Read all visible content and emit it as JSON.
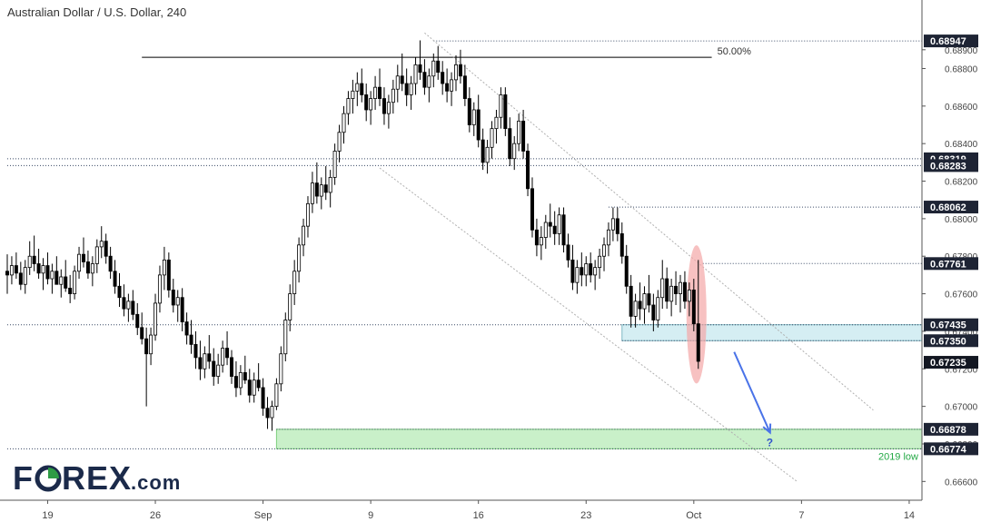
{
  "chart_data": {
    "type": "candlestick",
    "title": "Australian Dollar / U.S. Dollar, 240",
    "y_ticks": [
      "0.68900",
      "0.68800",
      "0.68600",
      "0.68400",
      "0.68200",
      "0.68000",
      "0.67800",
      "0.67600",
      "0.67400",
      "0.67200",
      "0.67000",
      "0.66800",
      "0.66600"
    ],
    "x_ticks": [
      "19",
      "26",
      "Sep",
      "9",
      "16",
      "23",
      "Oct",
      "7",
      "14"
    ],
    "x_tick_index": [
      9,
      33,
      57,
      81,
      105,
      129,
      153,
      177,
      201
    ],
    "ylim": [
      0.665,
      0.6902
    ],
    "grid": false,
    "price_lines": [
      {
        "label": "0.68947",
        "value": 0.68947,
        "style": "dotted"
      },
      {
        "label": "0.68319",
        "value": 0.68319,
        "style": "dotted"
      },
      {
        "label": "0.68283",
        "value": 0.68283,
        "style": "dotted"
      },
      {
        "label": "0.68062",
        "value": 0.68062,
        "style": "dotted"
      },
      {
        "label": "0.67761",
        "value": 0.67761,
        "style": "dotted"
      },
      {
        "label": "0.67435",
        "value": 0.67435,
        "style": "dotted"
      },
      {
        "label": "0.67350",
        "value": 0.6735,
        "style": "dotted"
      },
      {
        "label": "0.67235",
        "value": 0.67235,
        "style": "current"
      },
      {
        "label": "0.66878",
        "value": 0.66878,
        "style": "dotted"
      },
      {
        "label": "0.66774",
        "value": 0.66774,
        "style": "dotted"
      }
    ],
    "fib_line": {
      "label": "50.00%",
      "value": 0.6886,
      "start_index": 30,
      "end_index": 157
    },
    "zones": [
      {
        "name": "resistance-zone",
        "from": 0.6735,
        "to": 0.67435,
        "start_index": 137,
        "color": "#d5eef3"
      },
      {
        "name": "support-zone",
        "from": 0.66774,
        "to": 0.66878,
        "start_index": 60,
        "color": "#c9f0c9",
        "label": "2019 low"
      }
    ],
    "channel": [
      {
        "x1": 93,
        "y1": 0.6899,
        "x2": 193,
        "y2": 0.6698
      },
      {
        "x1": 83,
        "y1": 0.6827,
        "x2": 176,
        "y2": 0.666
      }
    ],
    "arrow": {
      "x1": 162,
      "y1": 0.6729,
      "x2": 170,
      "y2": 0.6686,
      "label": "?"
    },
    "highlight": {
      "index": 154,
      "low": 0.6717,
      "high": 0.6781
    },
    "colors": {
      "candle": "#000000",
      "current_badge": "#131722",
      "label_badge": "#1e2434",
      "arrow": "#4a73e8",
      "highlight": "#f4a6a6",
      "support_text": "#22a844",
      "fib": "#000000"
    },
    "candles": [
      [
        0.6772,
        0.6781,
        0.676,
        0.677
      ],
      [
        0.677,
        0.678,
        0.6765,
        0.6775
      ],
      [
        0.6775,
        0.6782,
        0.6768,
        0.6771
      ],
      [
        0.6771,
        0.6777,
        0.6762,
        0.6765
      ],
      [
        0.6765,
        0.6778,
        0.676,
        0.6774
      ],
      [
        0.6774,
        0.6788,
        0.677,
        0.678
      ],
      [
        0.678,
        0.6791,
        0.6772,
        0.6776
      ],
      [
        0.6776,
        0.6784,
        0.6768,
        0.6771
      ],
      [
        0.6771,
        0.6779,
        0.6762,
        0.6775
      ],
      [
        0.6775,
        0.6782,
        0.6765,
        0.6768
      ],
      [
        0.6768,
        0.6776,
        0.676,
        0.6772
      ],
      [
        0.6772,
        0.678,
        0.6766,
        0.6765
      ],
      [
        0.6765,
        0.6773,
        0.6758,
        0.6769
      ],
      [
        0.6769,
        0.6778,
        0.6761,
        0.6763
      ],
      [
        0.6763,
        0.677,
        0.6755,
        0.676
      ],
      [
        0.676,
        0.6775,
        0.6757,
        0.6772
      ],
      [
        0.6772,
        0.6785,
        0.6768,
        0.6781
      ],
      [
        0.6781,
        0.679,
        0.6774,
        0.6777
      ],
      [
        0.6777,
        0.6783,
        0.6768,
        0.6771
      ],
      [
        0.6771,
        0.678,
        0.6764,
        0.6776
      ],
      [
        0.6776,
        0.6789,
        0.6771,
        0.6785
      ],
      [
        0.6785,
        0.6796,
        0.6779,
        0.6788
      ],
      [
        0.6788,
        0.6792,
        0.6776,
        0.678
      ],
      [
        0.678,
        0.6785,
        0.6768,
        0.6772
      ],
      [
        0.6772,
        0.6778,
        0.676,
        0.6764
      ],
      [
        0.6764,
        0.6771,
        0.6753,
        0.6758
      ],
      [
        0.6758,
        0.6765,
        0.6748,
        0.6752
      ],
      [
        0.6752,
        0.676,
        0.6745,
        0.6756
      ],
      [
        0.6756,
        0.6762,
        0.6746,
        0.6749
      ],
      [
        0.6749,
        0.6755,
        0.6738,
        0.6742
      ],
      [
        0.6742,
        0.675,
        0.6733,
        0.6736
      ],
      [
        0.6736,
        0.6742,
        0.67,
        0.6728
      ],
      [
        0.6728,
        0.6742,
        0.6722,
        0.6738
      ],
      [
        0.6738,
        0.676,
        0.6735,
        0.6755
      ],
      [
        0.6755,
        0.6775,
        0.675,
        0.677
      ],
      [
        0.677,
        0.6785,
        0.6762,
        0.6778
      ],
      [
        0.6778,
        0.6782,
        0.6758,
        0.6762
      ],
      [
        0.6762,
        0.6768,
        0.675,
        0.6754
      ],
      [
        0.6754,
        0.6762,
        0.6745,
        0.6758
      ],
      [
        0.6758,
        0.6763,
        0.674,
        0.6745
      ],
      [
        0.6745,
        0.675,
        0.6733,
        0.6738
      ],
      [
        0.6738,
        0.6746,
        0.6728,
        0.6733
      ],
      [
        0.6733,
        0.674,
        0.672,
        0.6726
      ],
      [
        0.6726,
        0.6735,
        0.6714,
        0.672
      ],
      [
        0.672,
        0.6732,
        0.6715,
        0.6728
      ],
      [
        0.6728,
        0.6738,
        0.672,
        0.6724
      ],
      [
        0.6724,
        0.6731,
        0.6711,
        0.6716
      ],
      [
        0.6716,
        0.6728,
        0.6712,
        0.6722
      ],
      [
        0.6722,
        0.6735,
        0.6718,
        0.6731
      ],
      [
        0.6731,
        0.674,
        0.6722,
        0.6726
      ],
      [
        0.6726,
        0.673,
        0.6712,
        0.6716
      ],
      [
        0.6716,
        0.6724,
        0.6705,
        0.671
      ],
      [
        0.671,
        0.6722,
        0.6706,
        0.6718
      ],
      [
        0.6718,
        0.6727,
        0.6712,
        0.6714
      ],
      [
        0.6714,
        0.672,
        0.6702,
        0.6706
      ],
      [
        0.6706,
        0.6718,
        0.6702,
        0.6714
      ],
      [
        0.6714,
        0.6723,
        0.6708,
        0.671
      ],
      [
        0.671,
        0.6715,
        0.6695,
        0.6699
      ],
      [
        0.6699,
        0.6705,
        0.6688,
        0.6694
      ],
      [
        0.6694,
        0.6703,
        0.6687,
        0.67
      ],
      [
        0.67,
        0.6715,
        0.6698,
        0.6712
      ],
      [
        0.6712,
        0.6732,
        0.6708,
        0.6728
      ],
      [
        0.6728,
        0.675,
        0.6724,
        0.6746
      ],
      [
        0.6746,
        0.6765,
        0.674,
        0.676
      ],
      [
        0.676,
        0.6778,
        0.6754,
        0.6772
      ],
      [
        0.6772,
        0.679,
        0.6766,
        0.6786
      ],
      [
        0.6786,
        0.68,
        0.678,
        0.6796
      ],
      [
        0.6796,
        0.6812,
        0.679,
        0.6808
      ],
      [
        0.6808,
        0.6825,
        0.6803,
        0.6819
      ],
      [
        0.6819,
        0.683,
        0.6808,
        0.6812
      ],
      [
        0.6812,
        0.6822,
        0.6805,
        0.6818
      ],
      [
        0.6818,
        0.6828,
        0.681,
        0.6814
      ],
      [
        0.6814,
        0.6826,
        0.6806,
        0.6822
      ],
      [
        0.6822,
        0.684,
        0.6818,
        0.6836
      ],
      [
        0.6836,
        0.685,
        0.683,
        0.6846
      ],
      [
        0.6846,
        0.686,
        0.684,
        0.6856
      ],
      [
        0.6856,
        0.6868,
        0.685,
        0.6864
      ],
      [
        0.6864,
        0.6874,
        0.6856,
        0.6868
      ],
      [
        0.6868,
        0.6878,
        0.686,
        0.6872
      ],
      [
        0.6872,
        0.688,
        0.6862,
        0.6866
      ],
      [
        0.6866,
        0.6872,
        0.6852,
        0.6858
      ],
      [
        0.6858,
        0.6868,
        0.685,
        0.6864
      ],
      [
        0.6864,
        0.6876,
        0.6858,
        0.687
      ],
      [
        0.687,
        0.688,
        0.686,
        0.6864
      ],
      [
        0.6864,
        0.687,
        0.685,
        0.6856
      ],
      [
        0.6856,
        0.6866,
        0.6848,
        0.6862
      ],
      [
        0.6862,
        0.6874,
        0.6856,
        0.6869
      ],
      [
        0.6869,
        0.6882,
        0.6862,
        0.6876
      ],
      [
        0.6876,
        0.6888,
        0.6868,
        0.6872
      ],
      [
        0.6872,
        0.688,
        0.686,
        0.6866
      ],
      [
        0.6866,
        0.6876,
        0.6858,
        0.6872
      ],
      [
        0.6872,
        0.6886,
        0.6866,
        0.6882
      ],
      [
        0.6882,
        0.6895,
        0.6874,
        0.6878
      ],
      [
        0.6878,
        0.6885,
        0.6866,
        0.687
      ],
      [
        0.687,
        0.688,
        0.6862,
        0.6876
      ],
      [
        0.6876,
        0.6888,
        0.687,
        0.6884
      ],
      [
        0.6884,
        0.6892,
        0.6874,
        0.6878
      ],
      [
        0.6878,
        0.6884,
        0.6866,
        0.6872
      ],
      [
        0.6872,
        0.688,
        0.6862,
        0.6868
      ],
      [
        0.6868,
        0.6878,
        0.686,
        0.6874
      ],
      [
        0.6874,
        0.6887,
        0.6868,
        0.6882
      ],
      [
        0.6882,
        0.689,
        0.6872,
        0.6876
      ],
      [
        0.6876,
        0.6882,
        0.686,
        0.6864
      ],
      [
        0.6864,
        0.687,
        0.6846,
        0.685
      ],
      [
        0.685,
        0.6862,
        0.6844,
        0.6858
      ],
      [
        0.6858,
        0.6866,
        0.6838,
        0.6842
      ],
      [
        0.6842,
        0.6848,
        0.6826,
        0.683
      ],
      [
        0.683,
        0.6842,
        0.6824,
        0.6838
      ],
      [
        0.6838,
        0.6852,
        0.6832,
        0.6848
      ],
      [
        0.6848,
        0.6858,
        0.684,
        0.6854
      ],
      [
        0.6854,
        0.687,
        0.6848,
        0.6866
      ],
      [
        0.6866,
        0.687,
        0.6844,
        0.6848
      ],
      [
        0.6848,
        0.6854,
        0.6828,
        0.6832
      ],
      [
        0.6832,
        0.6844,
        0.6826,
        0.684
      ],
      [
        0.684,
        0.6856,
        0.6836,
        0.6852
      ],
      [
        0.6852,
        0.6858,
        0.6832,
        0.6836
      ],
      [
        0.6836,
        0.684,
        0.6812,
        0.6816
      ],
      [
        0.6816,
        0.6822,
        0.679,
        0.6794
      ],
      [
        0.6794,
        0.68,
        0.678,
        0.6786
      ],
      [
        0.6786,
        0.6796,
        0.6778,
        0.679
      ],
      [
        0.679,
        0.6802,
        0.6784,
        0.6798
      ],
      [
        0.6798,
        0.6808,
        0.679,
        0.6796
      ],
      [
        0.6796,
        0.6804,
        0.6786,
        0.6792
      ],
      [
        0.6792,
        0.6806,
        0.6786,
        0.6802
      ],
      [
        0.6802,
        0.6806,
        0.6782,
        0.6786
      ],
      [
        0.6786,
        0.6792,
        0.6774,
        0.6778
      ],
      [
        0.6778,
        0.6786,
        0.6762,
        0.6766
      ],
      [
        0.6766,
        0.6778,
        0.676,
        0.6774
      ],
      [
        0.6774,
        0.6782,
        0.6764,
        0.677
      ],
      [
        0.677,
        0.678,
        0.6764,
        0.6776
      ],
      [
        0.6776,
        0.6782,
        0.6766,
        0.677
      ],
      [
        0.677,
        0.6778,
        0.6762,
        0.6774
      ],
      [
        0.6774,
        0.6784,
        0.6768,
        0.678
      ],
      [
        0.678,
        0.679,
        0.6772,
        0.6786
      ],
      [
        0.6786,
        0.6798,
        0.678,
        0.6794
      ],
      [
        0.6794,
        0.6806,
        0.6788,
        0.68
      ],
      [
        0.68,
        0.6806,
        0.6788,
        0.6792
      ],
      [
        0.6792,
        0.6798,
        0.6776,
        0.678
      ],
      [
        0.678,
        0.6786,
        0.676,
        0.6764
      ],
      [
        0.6764,
        0.677,
        0.6742,
        0.6748
      ],
      [
        0.6748,
        0.676,
        0.6742,
        0.6756
      ],
      [
        0.6756,
        0.6766,
        0.6746,
        0.6752
      ],
      [
        0.6752,
        0.6764,
        0.6744,
        0.676
      ],
      [
        0.676,
        0.677,
        0.675,
        0.6754
      ],
      [
        0.6754,
        0.676,
        0.674,
        0.6746
      ],
      [
        0.6746,
        0.6762,
        0.6742,
        0.6758
      ],
      [
        0.6758,
        0.6778,
        0.6752,
        0.6768
      ],
      [
        0.6768,
        0.6774,
        0.6752,
        0.6756
      ],
      [
        0.6756,
        0.6768,
        0.6748,
        0.6764
      ],
      [
        0.6764,
        0.6772,
        0.6754,
        0.676
      ],
      [
        0.676,
        0.677,
        0.675,
        0.6766
      ],
      [
        0.6766,
        0.6772,
        0.6752,
        0.6756
      ],
      [
        0.6756,
        0.6766,
        0.6748,
        0.6762
      ],
      [
        0.6762,
        0.6768,
        0.674,
        0.6744
      ],
      [
        0.6744,
        0.6778,
        0.672,
        0.6724
      ]
    ]
  }
}
